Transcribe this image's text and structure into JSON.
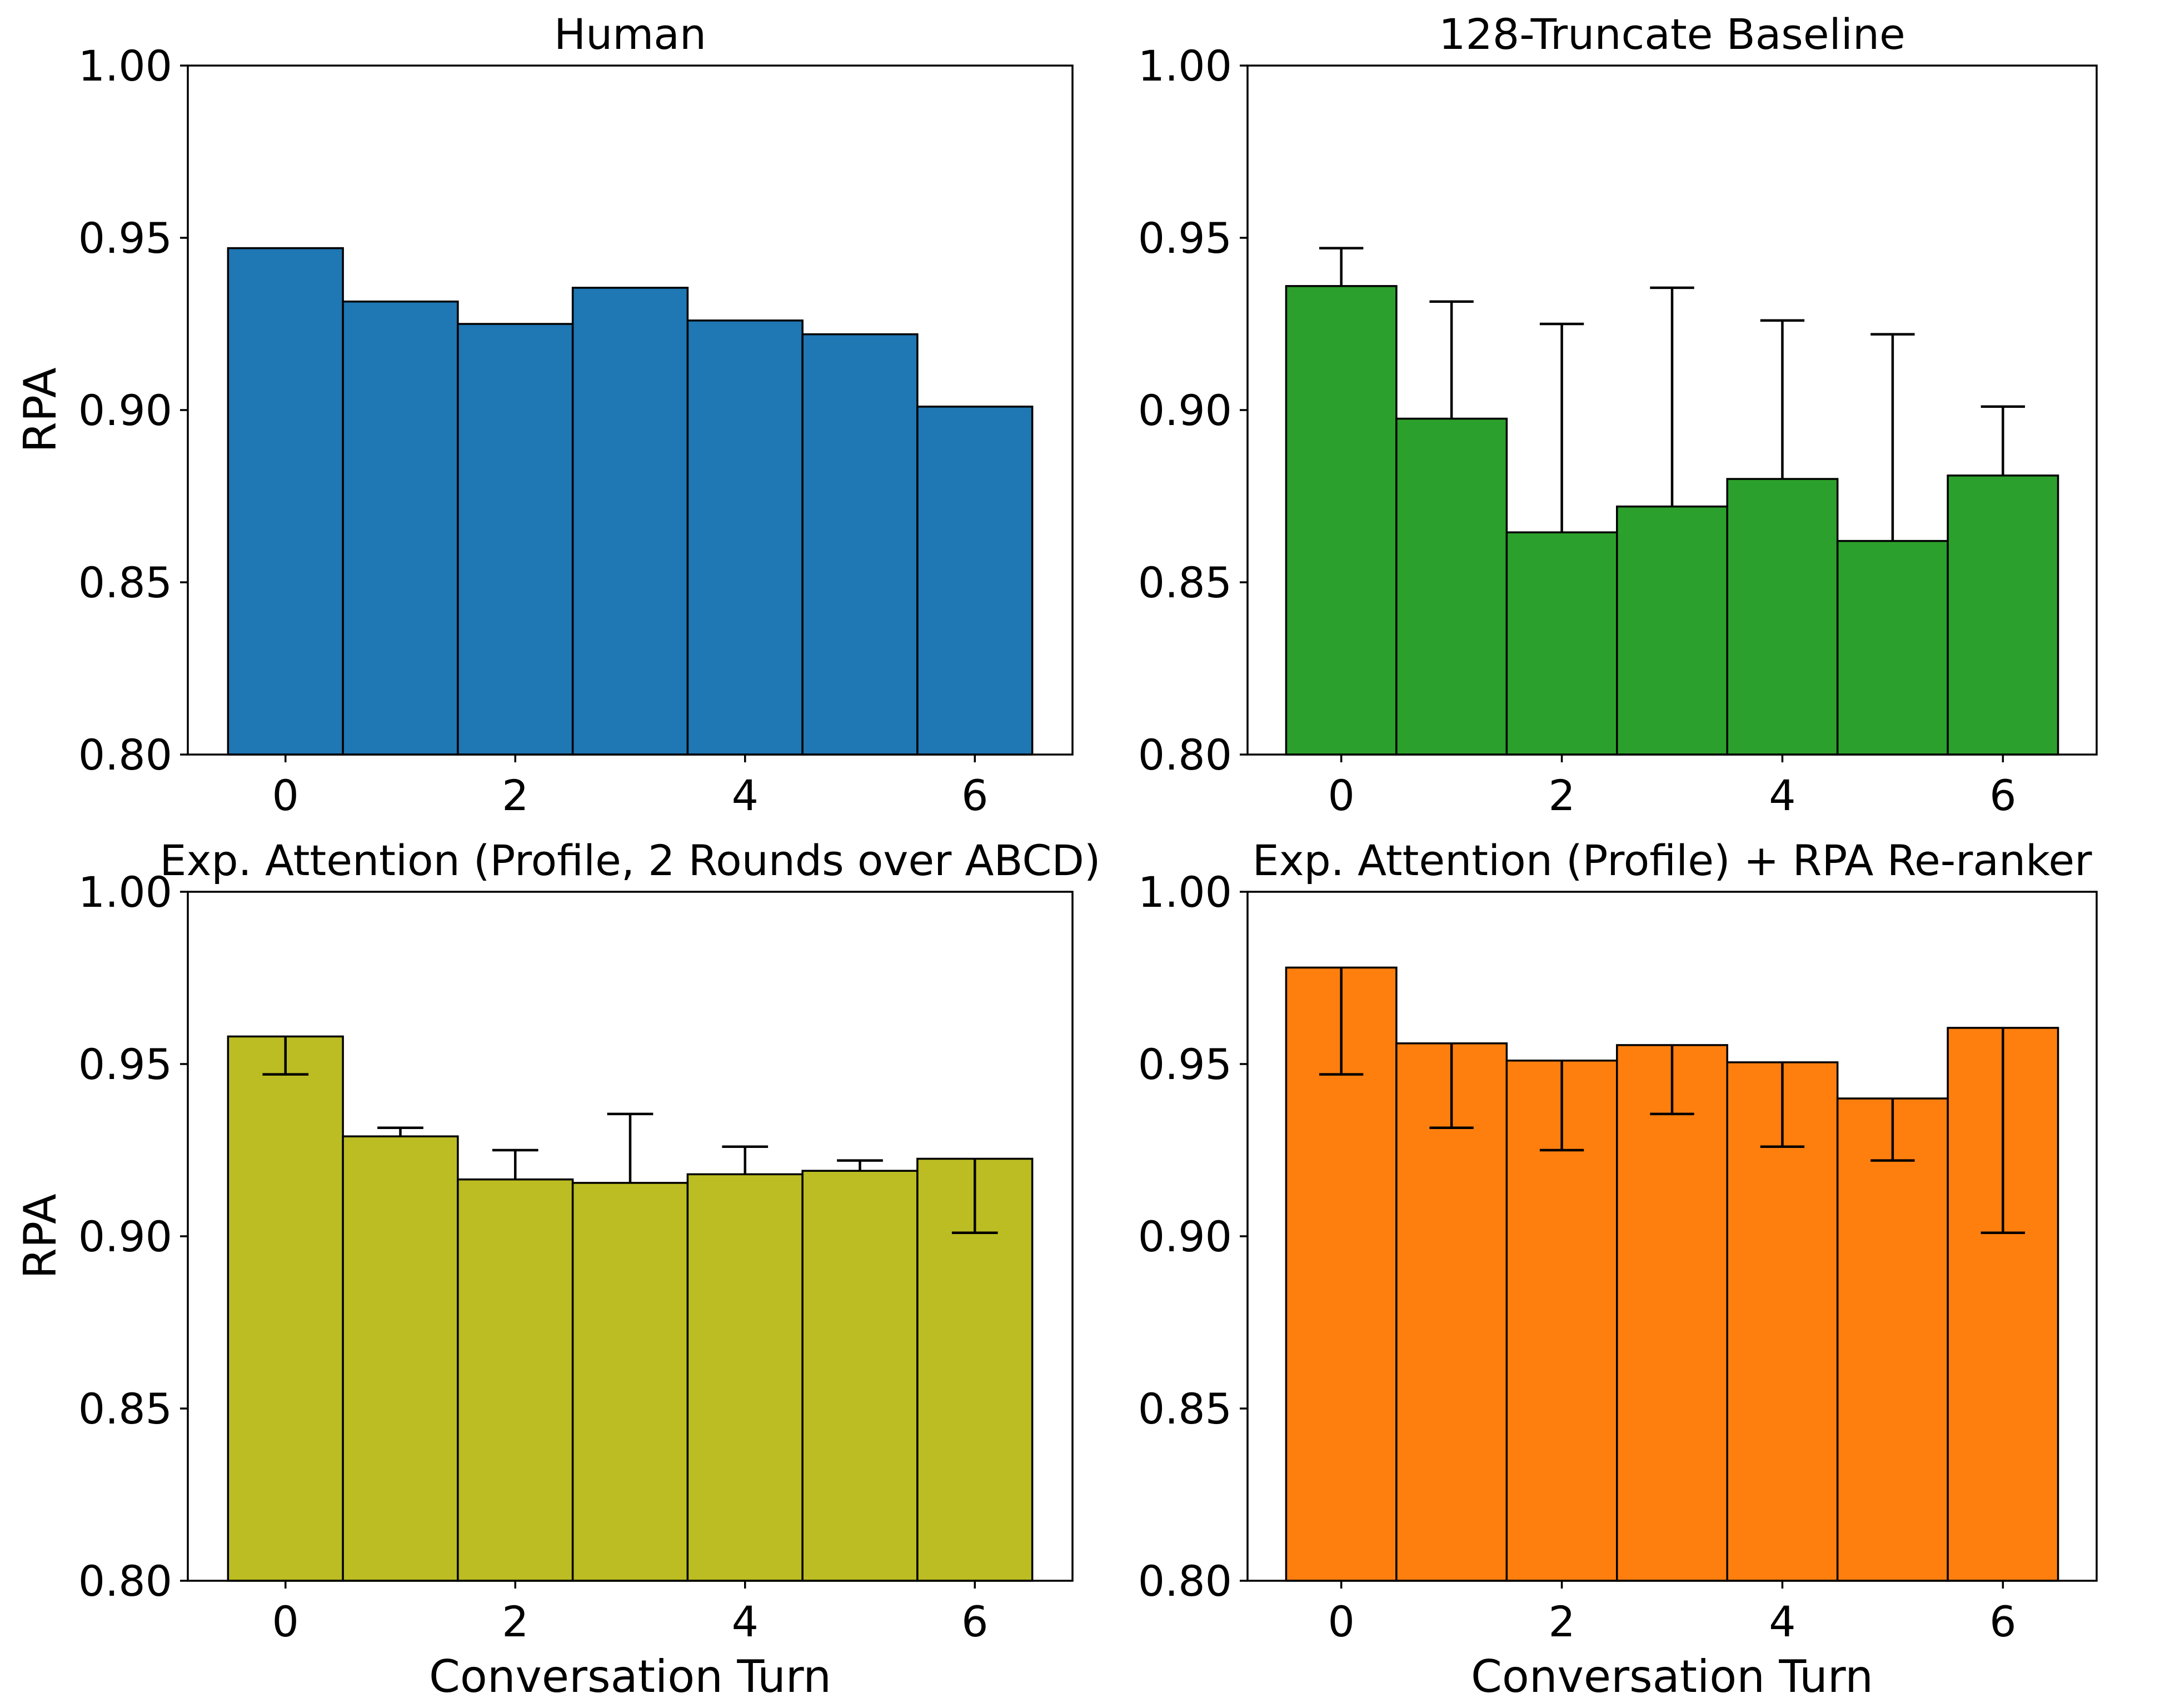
{
  "chart_data": [
    {
      "type": "bar",
      "title": "Human",
      "xlabel": "",
      "ylabel": "RPA",
      "x": [
        0,
        1,
        2,
        3,
        4,
        5,
        6
      ],
      "values": [
        0.947,
        0.9315,
        0.925,
        0.9355,
        0.926,
        0.922,
        0.901
      ],
      "error_bars": null,
      "color": "#1f77b4",
      "ylim": [
        0.8,
        1.0
      ],
      "xticks": [
        "0",
        "2",
        "4",
        "6"
      ],
      "yticks": [
        "0.80",
        "0.85",
        "0.90",
        "0.95",
        "1.00"
      ],
      "grid": false
    },
    {
      "type": "bar",
      "title": "128-Truncate Baseline",
      "xlabel": "",
      "ylabel": "",
      "x": [
        0,
        1,
        2,
        3,
        4,
        5,
        6
      ],
      "values": [
        0.936,
        0.8975,
        0.8645,
        0.872,
        0.88,
        0.862,
        0.881
      ],
      "error_bars": [
        0.947,
        0.9315,
        0.925,
        0.9355,
        0.926,
        0.922,
        0.901
      ],
      "color": "#2ca02c",
      "ylim": [
        0.8,
        1.0
      ],
      "xticks": [
        "0",
        "2",
        "4",
        "6"
      ],
      "yticks": [
        "0.80",
        "0.85",
        "0.90",
        "0.95",
        "1.00"
      ],
      "grid": false
    },
    {
      "type": "bar",
      "title": "Exp. Attention (Profile, 2 Rounds over ABCD)",
      "xlabel": "Conversation Turn",
      "ylabel": "RPA",
      "x": [
        0,
        1,
        2,
        3,
        4,
        5,
        6
      ],
      "values": [
        0.958,
        0.929,
        0.9165,
        0.9155,
        0.918,
        0.919,
        0.9225
      ],
      "error_bars": [
        0.947,
        0.9315,
        0.925,
        0.9355,
        0.926,
        0.922,
        0.901
      ],
      "color": "#bcbd22",
      "ylim": [
        0.8,
        1.0
      ],
      "xticks": [
        "0",
        "2",
        "4",
        "6"
      ],
      "yticks": [
        "0.80",
        "0.85",
        "0.90",
        "0.95",
        "1.00"
      ],
      "grid": false
    },
    {
      "type": "bar",
      "title": "Exp. Attention (Profile) + RPA Re-ranker",
      "xlabel": "Conversation Turn",
      "ylabel": "",
      "x": [
        0,
        1,
        2,
        3,
        4,
        5,
        6
      ],
      "values": [
        0.978,
        0.956,
        0.951,
        0.9555,
        0.9505,
        0.94,
        0.9605
      ],
      "error_bars": [
        0.947,
        0.9315,
        0.925,
        0.9355,
        0.926,
        0.922,
        0.901
      ],
      "color": "#ff7f0e",
      "ylim": [
        0.8,
        1.0
      ],
      "xticks": [
        "0",
        "2",
        "4",
        "6"
      ],
      "yticks": [
        "0.80",
        "0.85",
        "0.90",
        "0.95",
        "1.00"
      ],
      "grid": false
    }
  ]
}
